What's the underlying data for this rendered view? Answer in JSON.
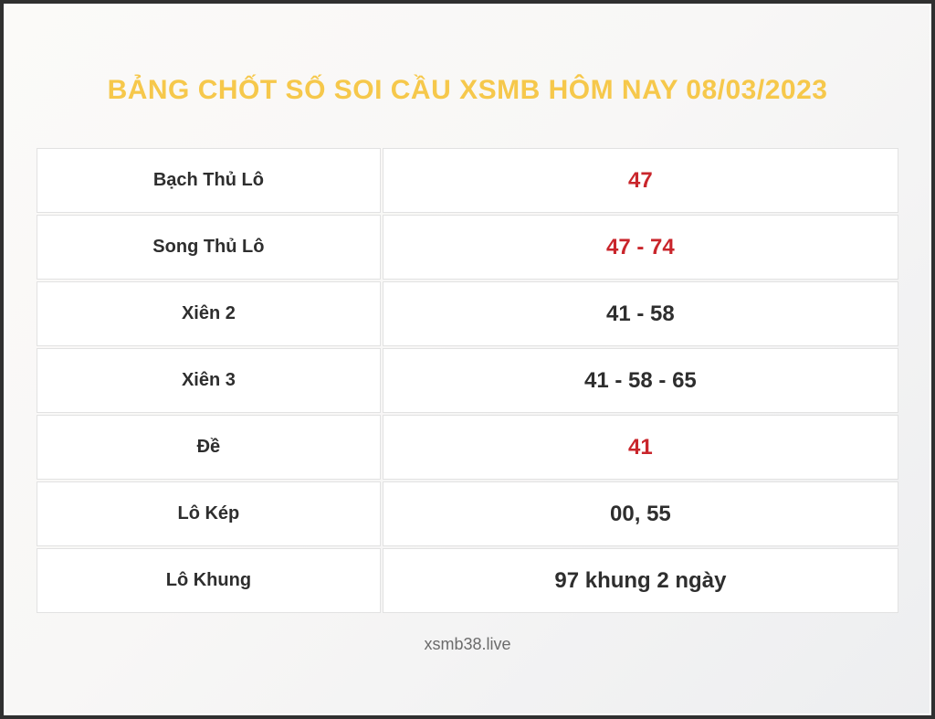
{
  "title": "BẢNG CHỐT SỐ SOI CẦU XSMB HÔM NAY 08/03/2023",
  "table": {
    "rows": [
      {
        "label": "Bạch Thủ Lô",
        "value": "47",
        "highlight": true
      },
      {
        "label": "Song Thủ Lô",
        "value": "47 - 74",
        "highlight": true
      },
      {
        "label": "Xiên 2",
        "value": "41 - 58",
        "highlight": false
      },
      {
        "label": "Xiên 3",
        "value": "41 - 58 - 65",
        "highlight": false
      },
      {
        "label": "Đề",
        "value": "41",
        "highlight": true
      },
      {
        "label": "Lô Kép",
        "value": "00, 55",
        "highlight": false
      },
      {
        "label": "Lô Khung",
        "value": "97 khung 2 ngày",
        "highlight": false
      }
    ]
  },
  "footer": {
    "site": "xsmb38.live"
  },
  "colors": {
    "title_gold": "#f6c84b",
    "value_highlight_red": "#c9252b",
    "text_dark": "#2e2e2e",
    "frame_border": "#303030"
  }
}
